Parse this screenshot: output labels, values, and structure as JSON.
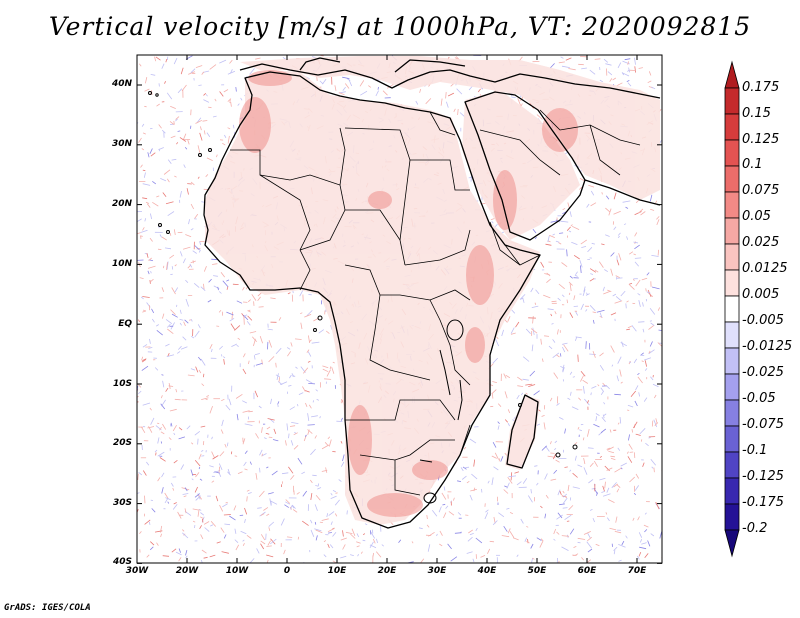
{
  "title": "Vertical velocity [m/s] at 1000hPa, VT: 2020092815",
  "footer": "GrADS: IGES/COLA",
  "map": {
    "region": "Africa, Arabian Peninsula and Mediterranean",
    "lat_labels": [
      "40N",
      "30N",
      "20N",
      "10N",
      "EQ",
      "10S",
      "20S",
      "30S",
      "40S"
    ],
    "lon_labels": [
      "30W",
      "20W",
      "10W",
      "0",
      "10E",
      "20E",
      "30E",
      "40E",
      "50E",
      "60E",
      "70E"
    ],
    "lat_range": [
      -40,
      45
    ],
    "lon_range": [
      -30,
      75
    ]
  },
  "colorbar": {
    "labels": [
      "0.175",
      "0.15",
      "0.125",
      "0.1",
      "0.075",
      "0.05",
      "0.025",
      "0.0125",
      "0.005",
      "-0.005",
      "-0.0125",
      "-0.025",
      "-0.05",
      "-0.075",
      "-0.1",
      "-0.125",
      "-0.175",
      "-0.2"
    ],
    "colors": [
      "#b01c20",
      "#c42a2c",
      "#d63c3c",
      "#e45352",
      "#ec6d6a",
      "#f28a86",
      "#f6a8a4",
      "#fac4c0",
      "#fde1de",
      "#ffffff",
      "#e0e0fc",
      "#c2c0f6",
      "#a4a0ee",
      "#8680e2",
      "#6a62d4",
      "#5044c4",
      "#3828b0",
      "#241296",
      "#17087a"
    ]
  }
}
